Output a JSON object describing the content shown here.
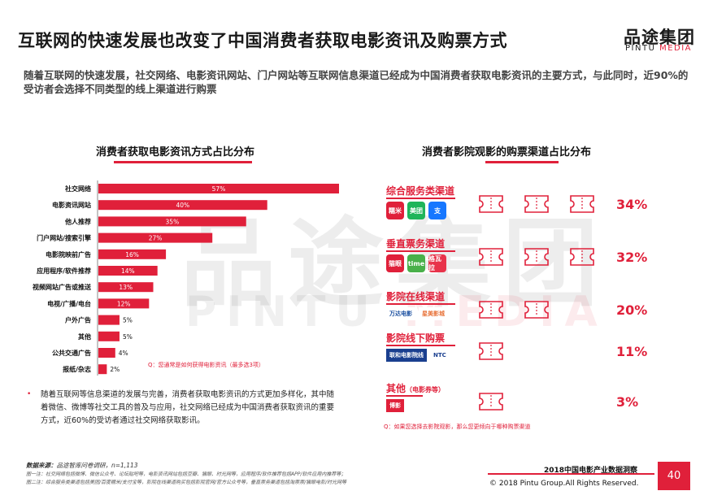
{
  "header": {
    "title": "互联网的快速发展也改变了中国消费者获取电影资讯及购票方式",
    "subtitle": "随着互联网的快速发展，社交网络、电影资讯网站、门户网站等互联网信息渠道已经成为中国消费者获取电影资讯的主要方式，与此同时，近90%的受访者会选择不同类型的线上渠道进行购票",
    "logo_cn": "品途集团",
    "logo_en_a": "PINTU ",
    "logo_en_b": "MEDIA"
  },
  "watermark": {
    "cn": "品途集团",
    "en_a": "PINTU ",
    "en_b": "MEDIA"
  },
  "left_panel": {
    "title": "消费者获取电影资讯方式占比分布",
    "note": "Q：您通常是如何获得电影资讯（最多选3项）",
    "bullet": "随着互联网等信息渠道的发展与完善，消费者获取电影资讯的方式更加多样化，其中随着微信、微博等社交工具的普及与应用，社交网络已经成为中国消费者获取资讯的重要方式，近60%的受访者通过社交网络获取影讯。"
  },
  "chart_data": {
    "type": "bar",
    "orientation": "horizontal",
    "categories": [
      "社交网络",
      "电影资讯网站",
      "他人推荐",
      "门户网站/搜索引擎",
      "电影院映前广告",
      "应用程序/软件推荐",
      "视频网站广告或推送",
      "电视/广播/电台",
      "户外广告",
      "其他",
      "公共交通广告",
      "报纸/杂志"
    ],
    "values": [
      57,
      40,
      35,
      27,
      16,
      14,
      13,
      12,
      5,
      5,
      4,
      2
    ],
    "value_labels": [
      "57%",
      "40%",
      "35%",
      "27%",
      "16%",
      "14%",
      "13%",
      "12%",
      "5%",
      "5%",
      "4%",
      "2%"
    ],
    "xlim": [
      0,
      60
    ],
    "bar_color": "#e0203a",
    "grid": false,
    "title": "消费者获取电影资讯方式占比分布"
  },
  "right_panel": {
    "title": "消费者影院观影的购票渠道占比分布",
    "note": "Q：如果您选择去影院观影，那么您更倾向于哪种购票渠道",
    "channels": [
      {
        "name": "综合服务类渠道",
        "suffix": "",
        "pct": "34%",
        "tickets": 3,
        "brands": [
          "糯米",
          "美团",
          "支"
        ]
      },
      {
        "name": "垂直票务渠道",
        "suffix": "",
        "pct": "32%",
        "tickets": 3,
        "brands": [
          "猫眼",
          "time",
          "格瓦拉"
        ]
      },
      {
        "name": "影院在线渠道",
        "suffix": "",
        "pct": "20%",
        "tickets": 2,
        "brands": [
          "万达电影",
          "星美影城"
        ]
      },
      {
        "name": "影院线下购票",
        "suffix": "",
        "pct": "11%",
        "tickets": 1,
        "brands": [
          "联和电影院线",
          "NTC"
        ]
      },
      {
        "name": "其他",
        "suffix": "（电影券等）",
        "pct": "3%",
        "tickets": 1,
        "brands": [
          "博影"
        ]
      }
    ]
  },
  "footer": {
    "source_label": "数据来源：",
    "source_text": "品途智库问卷调研，n=1,113",
    "note1": "图一注：社交网络包括微博、微信公众号、论坛贴吧等，电影资讯网站包括豆瓣、猫眼、时光网等，应用程序/软件推荐包括APP/软件应用内推荐等；",
    "note2": "图二注：综合服务类渠道包括美团/百度糯米/支付宝等，影院在线渠道购买包括影院官网/官方公众号等，垂直票务渠道包括淘票票/猫眼电影/时光网等",
    "report": "2018中国电影产业数据洞察",
    "copyright": "© 2018 Pintu Group.All Rights Reserved.",
    "page": "40"
  },
  "colors": {
    "accent": "#e0203a",
    "text": "#222222"
  }
}
